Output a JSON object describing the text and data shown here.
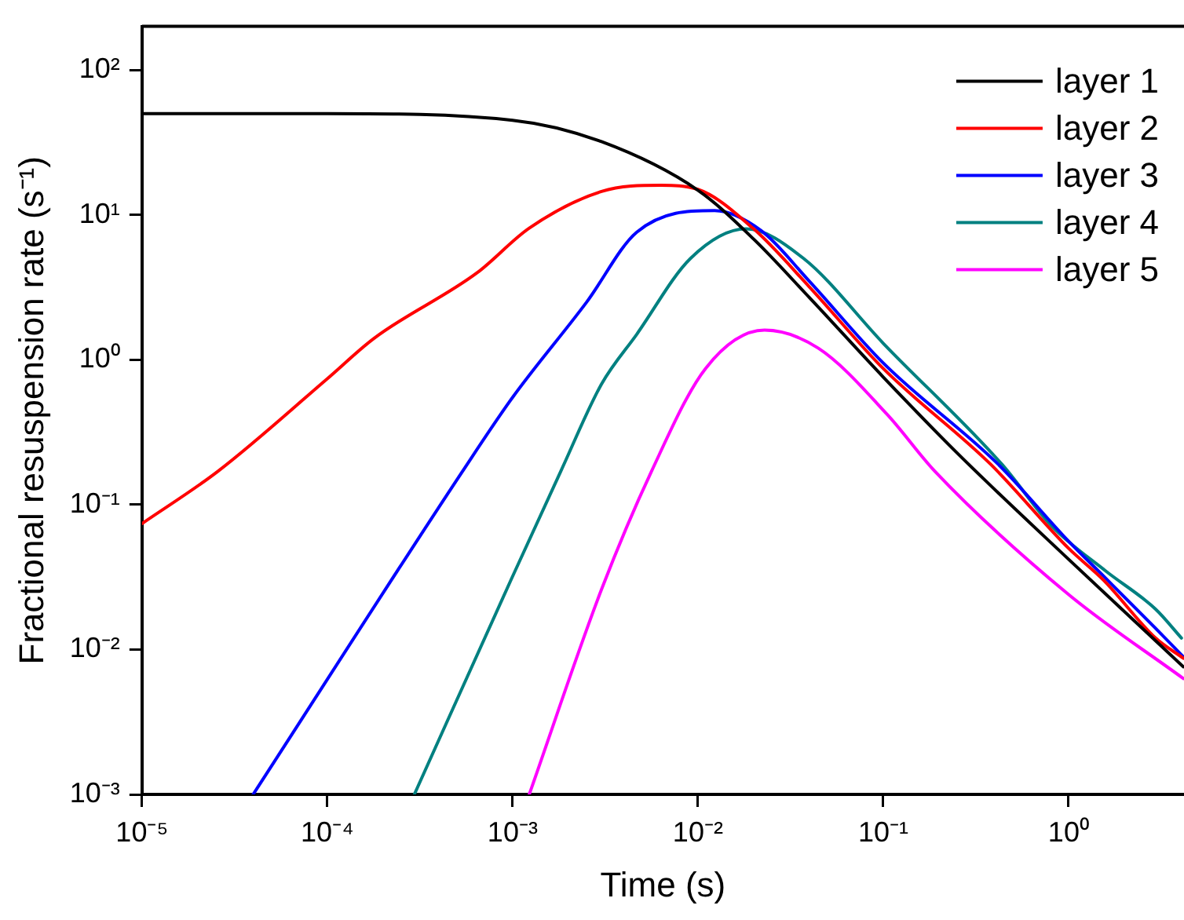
{
  "chart_data": {
    "type": "line",
    "xlabel": "Time (s)",
    "ylabel": "Fractional resuspension rate (s⁻¹)",
    "log": "xy",
    "grid": false,
    "legend": "top right",
    "marker": "none",
    "line_style": "solid",
    "xlim": [
      1e-05,
      4.2
    ],
    "ylim": [
      0.001,
      200
    ],
    "xticks": [
      {
        "value": 1e-05,
        "label": "10⁻⁵"
      },
      {
        "value": 0.0001,
        "label": "10⁻⁴"
      },
      {
        "value": 0.001,
        "label": "10⁻³"
      },
      {
        "value": 0.01,
        "label": "10⁻²"
      },
      {
        "value": 0.1,
        "label": "10⁻¹"
      },
      {
        "value": 1,
        "label": "10⁰"
      }
    ],
    "yticks": [
      {
        "value": 0.001,
        "label": "10⁻³"
      },
      {
        "value": 0.01,
        "label": "10⁻²"
      },
      {
        "value": 0.1,
        "label": "10⁻¹"
      },
      {
        "value": 1,
        "label": "10⁰"
      },
      {
        "value": 10,
        "label": "10¹"
      },
      {
        "value": 100,
        "label": "10²"
      }
    ],
    "series": [
      {
        "name": "layer 1",
        "color": "#000000",
        "x": [
          1e-05,
          0.0001,
          0.001,
          0.00302,
          0.01,
          0.02,
          0.0398,
          0.1,
          0.257,
          1,
          4.17
        ],
        "values": [
          50,
          50,
          45,
          32,
          14.8,
          6.8,
          2.7,
          0.76,
          0.22,
          0.042,
          0.0076
        ]
      },
      {
        "name": "layer 2",
        "color": "#ff0000",
        "x": [
          1e-05,
          2.57e-05,
          0.0001,
          0.000178,
          0.000646,
          0.00123,
          0.00302,
          0.00631,
          0.01,
          0.02,
          0.0398,
          0.1,
          0.38,
          1,
          1.55,
          2.95,
          4.17
        ],
        "values": [
          0.074,
          0.17,
          0.74,
          1.4,
          4,
          8.1,
          14.5,
          16,
          15,
          8,
          3.2,
          0.87,
          0.19,
          0.05,
          0.03,
          0.012,
          0.0087
        ]
      },
      {
        "name": "layer 3",
        "color": "#0000ff",
        "x": [
          3.98e-05,
          0.000537,
          0.001,
          0.00251,
          0.00468,
          0.0123,
          0.0219,
          0.0398,
          0.1,
          0.417,
          1,
          1.55,
          2.95,
          4.17
        ],
        "values": [
          0.001,
          0.17,
          0.55,
          2.5,
          7.6,
          10.7,
          7.8,
          3.5,
          0.95,
          0.19,
          0.056,
          0.032,
          0.014,
          0.0089
        ]
      },
      {
        "name": "layer 4",
        "color": "#008080",
        "x": [
          0.000295,
          0.001,
          0.00182,
          0.00302,
          0.00468,
          0.00912,
          0.0182,
          0.0372,
          0.1,
          0.437,
          0.813,
          1.58,
          2.95,
          4.07
        ],
        "values": [
          0.001,
          0.032,
          0.17,
          0.68,
          1.5,
          5,
          8,
          5,
          1.3,
          0.19,
          0.071,
          0.035,
          0.019,
          0.012
        ]
      },
      {
        "name": "layer 5",
        "color": "#ff00ff",
        "x": [
          0.00123,
          0.00302,
          0.00562,
          0.011,
          0.0229,
          0.0447,
          0.105,
          0.19,
          1,
          4.17
        ],
        "values": [
          0.001,
          0.026,
          0.17,
          0.87,
          1.6,
          1.2,
          0.42,
          0.17,
          0.024,
          0.0063
        ]
      }
    ]
  }
}
